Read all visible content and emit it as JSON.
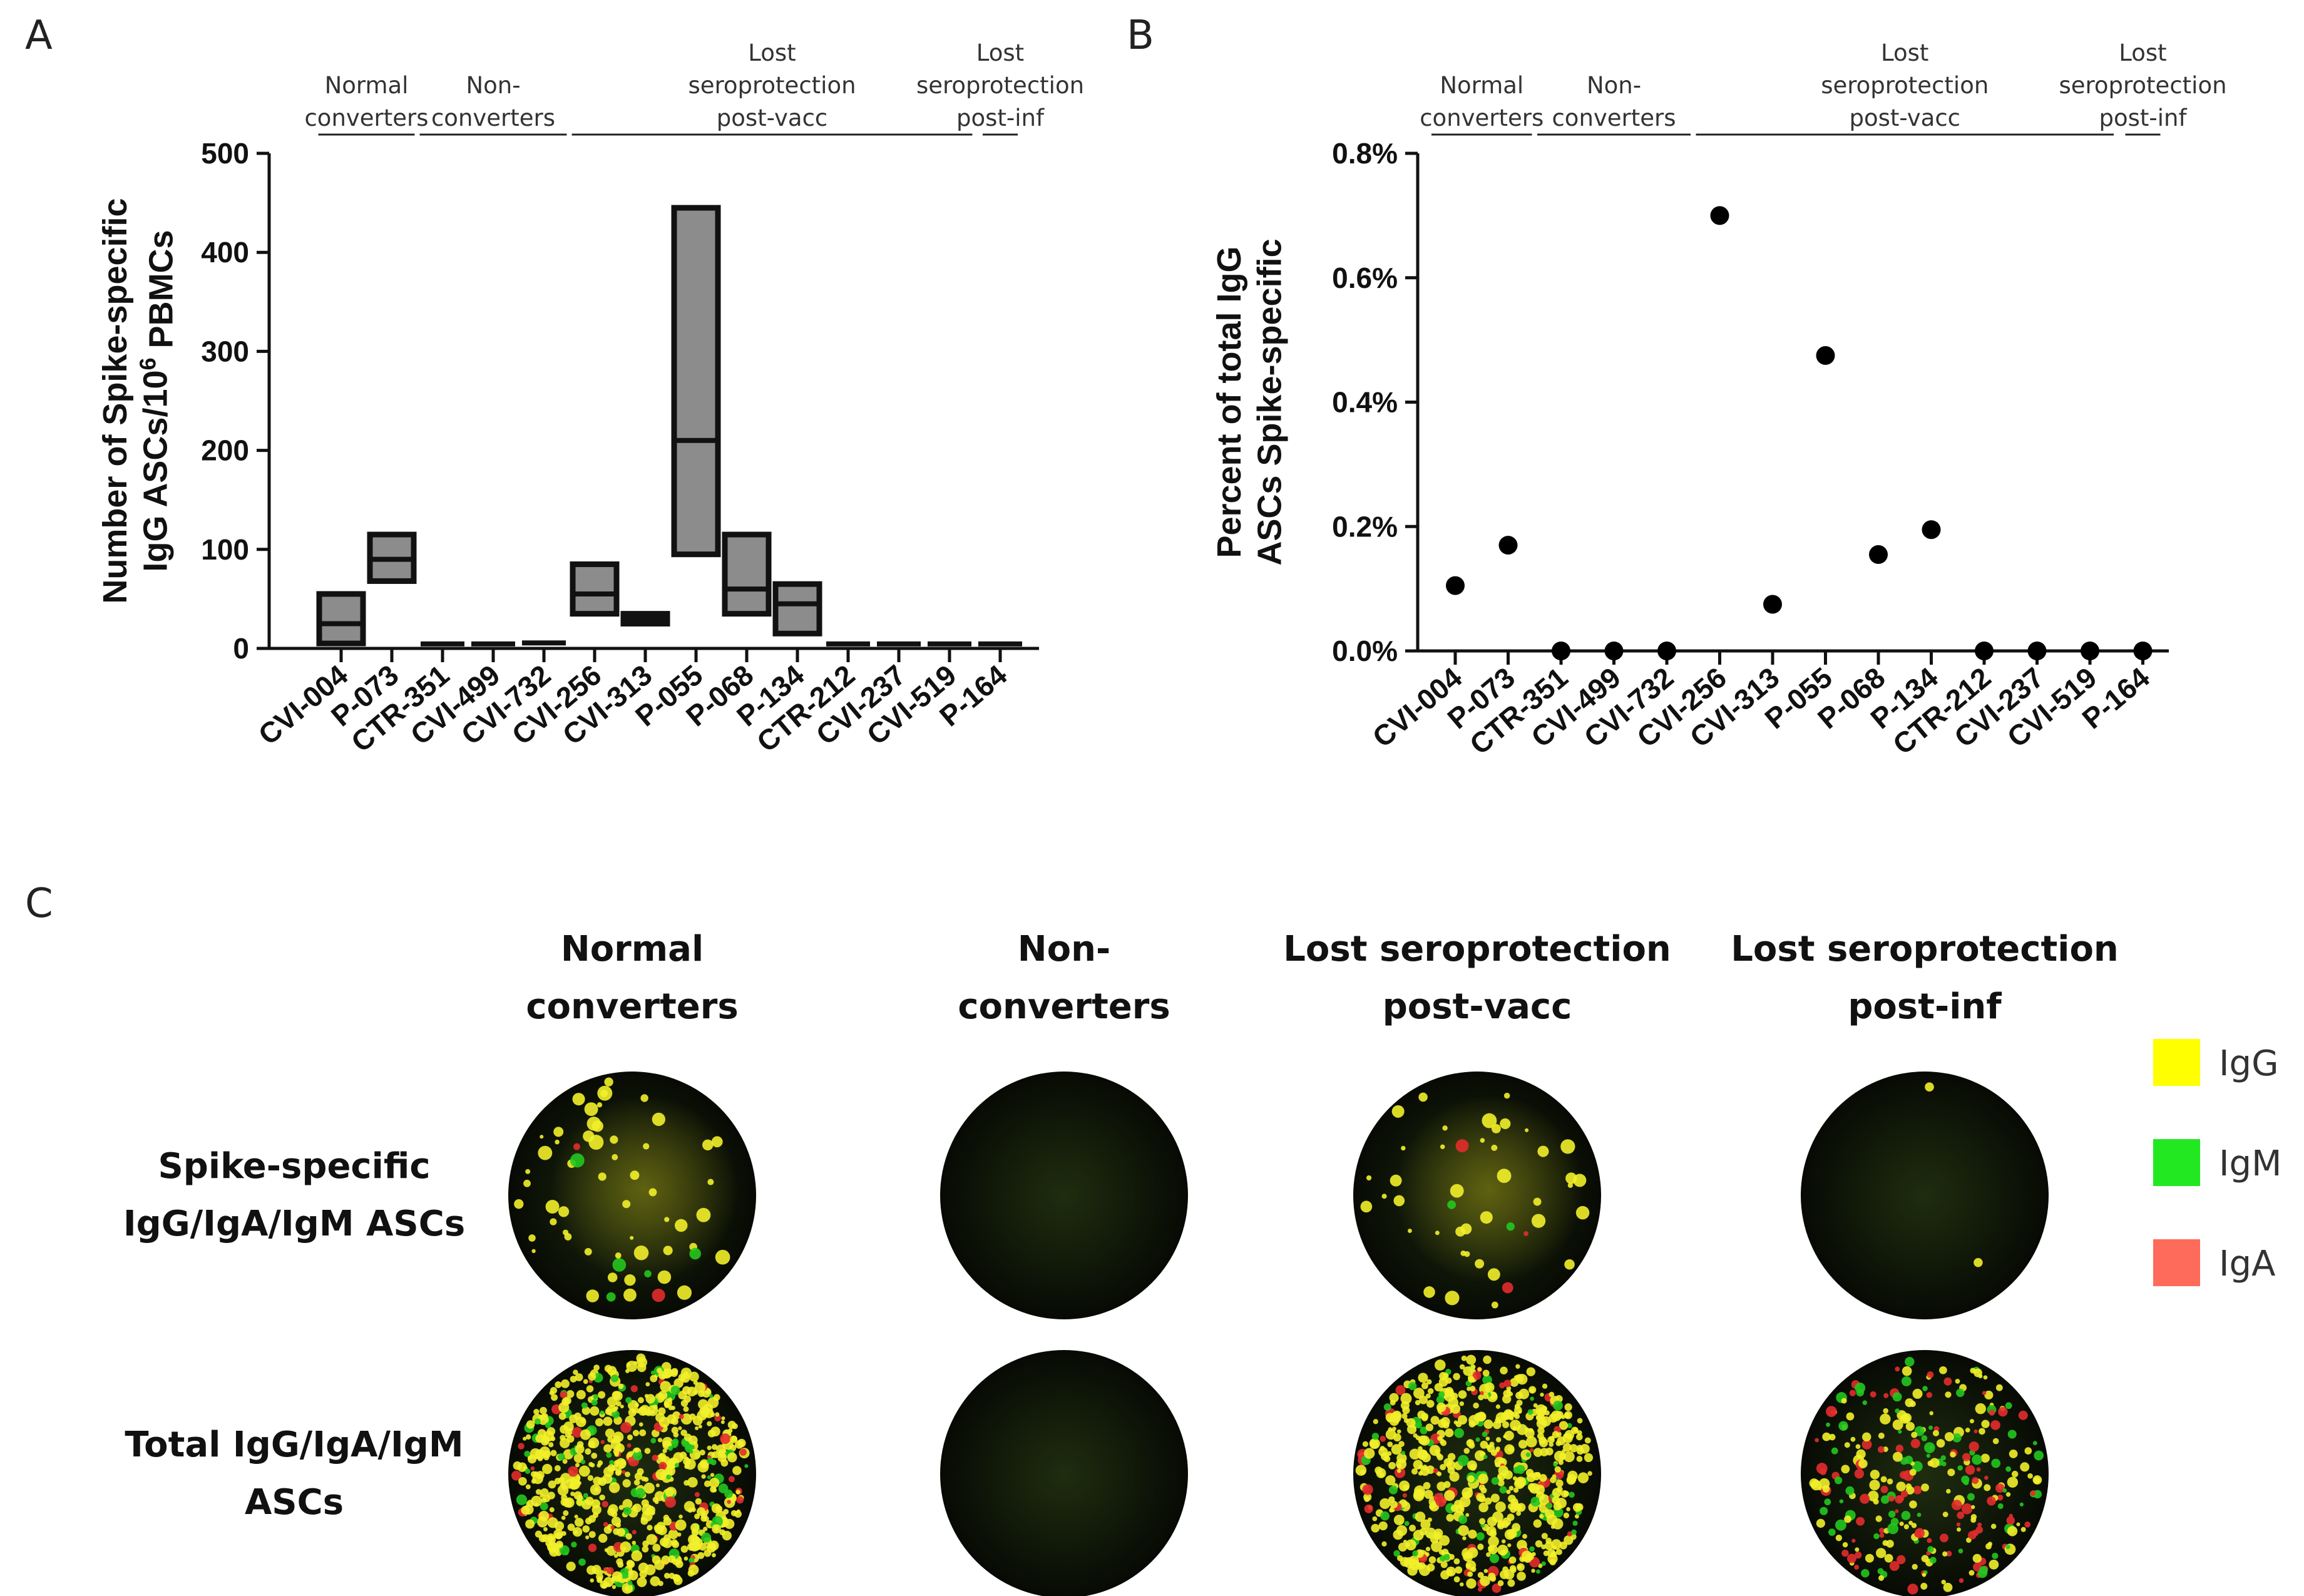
{
  "panel_letters": {
    "a": "A",
    "b": "B",
    "c": "C"
  },
  "groups": [
    {
      "label": [
        "Normal",
        "converters"
      ],
      "from": "CVI-004",
      "to": "P-073"
    },
    {
      "label": [
        "Non-",
        "converters"
      ],
      "from": "CTR-351",
      "to": "CVI-732"
    },
    {
      "label": [
        "Lost",
        "seroprotection",
        "post-vacc"
      ],
      "from": "CVI-256",
      "to": "CVI-519"
    },
    {
      "label": [
        "Lost",
        "seroprotection",
        "post-inf"
      ],
      "from": "P-164",
      "to": "P-164"
    }
  ],
  "chart_data": [
    {
      "type": "box",
      "panel": "A",
      "ylabel": [
        "Number of Spike-specific",
        "IgG ASCs/10",
        "6",
        " PBMCs"
      ],
      "ylim": [
        0,
        500
      ],
      "yticks": [
        0,
        100,
        200,
        300,
        400,
        500
      ],
      "categories": [
        "CVI-004",
        "P-073",
        "CTR-351",
        "CVI-499",
        "CVI-732",
        "CVI-256",
        "CVI-313",
        "P-055",
        "P-068",
        "P-134",
        "CTR-212",
        "CVI-237",
        "CVI-519",
        "P-164"
      ],
      "boxes": [
        {
          "min": 5,
          "median": 25,
          "max": 55
        },
        {
          "min": 68,
          "median": 90,
          "max": 115
        },
        {
          "min": 2,
          "median": 3,
          "max": 4
        },
        {
          "min": 2,
          "median": 3,
          "max": 4
        },
        {
          "min": 3,
          "median": 5,
          "max": 7
        },
        {
          "min": 35,
          "median": 55,
          "max": 85
        },
        {
          "min": 25,
          "median": 30,
          "max": 35
        },
        {
          "min": 95,
          "median": 210,
          "max": 445
        },
        {
          "min": 35,
          "median": 60,
          "max": 115
        },
        {
          "min": 15,
          "median": 45,
          "max": 65
        },
        {
          "min": 2,
          "median": 3,
          "max": 4
        },
        {
          "min": 2,
          "median": 3,
          "max": 4
        },
        {
          "min": 2,
          "median": 3,
          "max": 4
        },
        {
          "min": 2,
          "median": 3,
          "max": 4
        }
      ],
      "colors": {
        "fill": "#8c8c8c",
        "stroke": "#111111"
      }
    },
    {
      "type": "scatter",
      "panel": "B",
      "ylabel": [
        "Percent of total IgG",
        "ASCs Spike-specific"
      ],
      "ylim": [
        0,
        0.8
      ],
      "yticks": [
        "0.0%",
        "0.2%",
        "0.4%",
        "0.6%",
        "0.8%"
      ],
      "categories": [
        "CVI-004",
        "P-073",
        "CTR-351",
        "CVI-499",
        "CVI-732",
        "CVI-256",
        "CVI-313",
        "P-055",
        "P-068",
        "P-134",
        "CTR-212",
        "CVI-237",
        "CVI-519",
        "P-164"
      ],
      "values": [
        0.105,
        0.17,
        0,
        0,
        0,
        0.7,
        0.075,
        0.475,
        0.155,
        0.195,
        0,
        0,
        0,
        0
      ],
      "colors": {
        "point": "#000000"
      }
    }
  ],
  "panel_c": {
    "column_titles": [
      [
        "Normal",
        "converters"
      ],
      [
        "Non-",
        "converters"
      ],
      [
        "Lost seroprotection",
        "post-vacc"
      ],
      [
        "Lost seroprotection",
        "post-inf"
      ]
    ],
    "row_labels": [
      [
        "Spike-specific",
        "IgG/IgA/IgM ASCs"
      ],
      [
        "Total IgG/IgA/IgM",
        "ASCs"
      ]
    ],
    "legend": [
      {
        "label": "IgG",
        "color": "#ffff00"
      },
      {
        "label": "IgM",
        "color": "#22e822"
      },
      {
        "label": "IgA",
        "color": "#ff6b5b"
      }
    ],
    "spot_densities": [
      [
        60,
        0,
        45,
        2
      ],
      [
        700,
        0,
        650,
        300
      ]
    ]
  }
}
